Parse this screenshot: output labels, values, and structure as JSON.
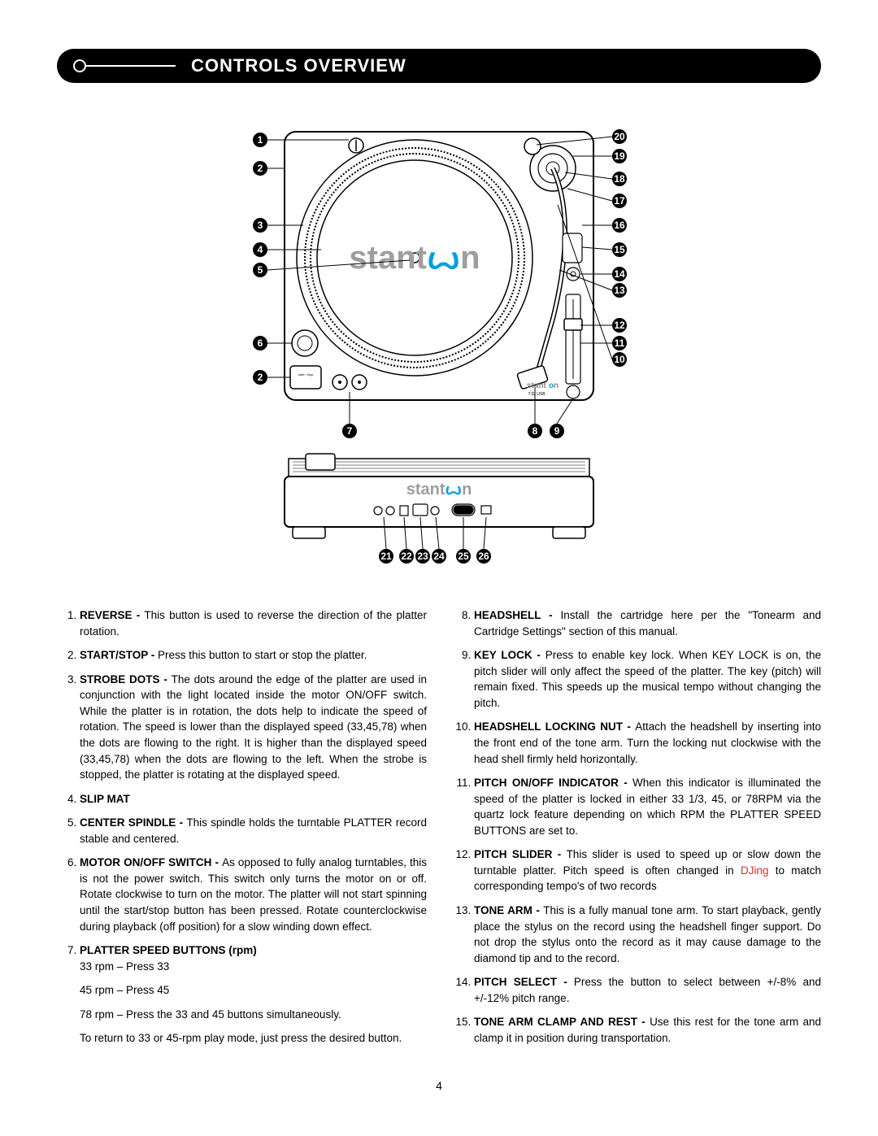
{
  "header": {
    "title": "CONTROLS OVERVIEW"
  },
  "diagram": {
    "brand_main": "stant",
    "brand_icon": "ꙍ",
    "brand_tail": "n",
    "brand_color_main": "#3a3a3a",
    "brand_color_icon": "#00a0e0",
    "sub_brand": "stanton",
    "sub_model": "T.92 USB",
    "callouts_left": [
      "1",
      "2",
      "3",
      "4",
      "5",
      "6",
      "2"
    ],
    "callouts_right": [
      "20",
      "19",
      "18",
      "17",
      "16",
      "15",
      "14",
      "13",
      "12",
      "11",
      "10"
    ],
    "callouts_bottom_top": [
      "7",
      "8",
      "9"
    ],
    "callouts_bottom_rear": [
      "21",
      "22",
      "23",
      "24",
      "25",
      "26"
    ]
  },
  "items_left": [
    {
      "n": 1,
      "title": "REVERSE - ",
      "body": "This button is used to reverse the direction of the platter rotation."
    },
    {
      "n": 2,
      "title": "START/STOP - ",
      "body": "Press this button to start or stop the platter."
    },
    {
      "n": 3,
      "title": "STROBE DOTS - ",
      "body": "The dots around the edge of the platter are used in conjunction with the light located inside the motor ON/OFF switch. While the platter is in rotation, the dots help to indicate the speed of rotation. The speed is lower than the displayed speed (33,45,78) when the dots are flowing to the right. It is higher than the displayed speed (33,45,78) when the dots are flowing to the left. When the strobe is stopped, the platter is rotating at the displayed speed."
    },
    {
      "n": 4,
      "title": "SLIP MAT",
      "body": ""
    },
    {
      "n": 5,
      "title": "CENTER SPINDLE - ",
      "body": "This spindle holds the turntable PLATTER record stable and centered."
    },
    {
      "n": 6,
      "title": "MOTOR ON/OFF SWITCH - ",
      "body": "As opposed to fully analog turntables, this is not the power switch. This switch only turns the motor on or off. Rotate clockwise to turn on the motor. The platter will not start spinning until the start/stop button has been pressed. Rotate counterclockwise during playback (off position) for a slow winding down effect."
    },
    {
      "n": 7,
      "title": "PLATTER SPEED BUTTONS (rpm)",
      "body": "",
      "sub": [
        "33 rpm – Press 33",
        "45 rpm – Press 45",
        "78 rpm – Press the 33 and 45 buttons simultaneously.",
        "To return to 33 or 45-rpm play mode, just press the desired button."
      ]
    }
  ],
  "items_right": [
    {
      "n": 8,
      "title": "HEADSHELL - ",
      "body": "Install the cartridge here per the \"Tonearm and Cartridge Settings\" section of this manual."
    },
    {
      "n": 9,
      "title": "KEY LOCK - ",
      "body": "Press to enable key lock. When KEY LOCK is on, the pitch slider will only affect the speed of the platter. The key (pitch) will remain fixed. This speeds up the musical tempo without changing the pitch."
    },
    {
      "n": 10,
      "title": "HEADSHELL LOCKING NUT - ",
      "body": "Attach the headshell by inserting into the front end of the tone arm. Turn the locking nut clockwise with the head shell firmly held horizontally."
    },
    {
      "n": 11,
      "title": "PITCH ON/OFF INDICATOR - ",
      "body": "When this indicator is illuminated the speed of the platter is locked in either 33 1/3, 45, or 78RPM via the quartz lock feature depending on which RPM the PLATTER SPEED BUTTONS are set to."
    },
    {
      "n": 12,
      "title": "PITCH SLIDER - ",
      "body_pre": "This slider is used to speed up or slow down the turntable platter. Pitch speed is often changed in ",
      "body_hl": "DJing",
      "body_post": " to match corresponding tempo's of two records"
    },
    {
      "n": 13,
      "title": "TONE ARM - ",
      "body": "This is a fully manual tone arm. To start playback, gently place the stylus on the record using the headshell finger support. Do not drop the stylus onto the record as it may cause damage to the diamond tip and to the record."
    },
    {
      "n": 14,
      "title": "PITCH SELECT - ",
      "body": " Press the button to select between +/-8% and +/-12% pitch range."
    },
    {
      "n": 15,
      "title": "TONE ARM CLAMP AND REST - ",
      "body": "Use this rest for the tone arm and clamp it in position during transportation."
    }
  ],
  "page_number": "4"
}
